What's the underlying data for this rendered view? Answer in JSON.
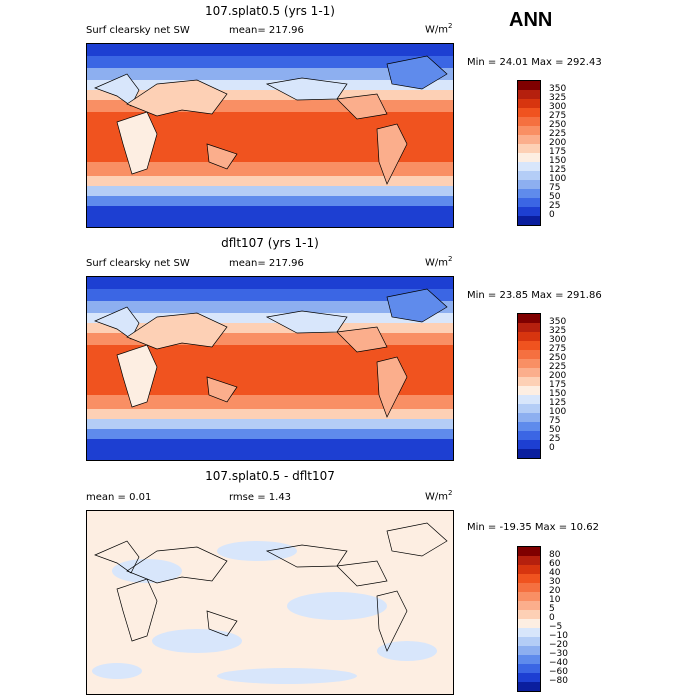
{
  "season": "ANN",
  "panels": [
    {
      "title": "107.splat0.5 (yrs 1-1)",
      "variable": "Surf clearsky net SW",
      "mean_label": "mean= 217.96",
      "units_base": "W/m",
      "units_exp": "2",
      "minmax": "Min =  24.01 Max = 292.43",
      "colorbar_levels": [
        "350",
        "325",
        "300",
        "275",
        "250",
        "225",
        "200",
        "175",
        "150",
        "125",
        "100",
        "75",
        "50",
        "25",
        "0"
      ],
      "colors": [
        "#7f0000",
        "#b5200e",
        "#d7350f",
        "#f0531f",
        "#f57040",
        "#f98f64",
        "#fbae8c",
        "#fdd0b5",
        "#fdeee2",
        "#d8e6fb",
        "#b4cdf6",
        "#8daff0",
        "#5f8bec",
        "#3b66e4",
        "#1d3fd2",
        "#0a1e9e"
      ]
    },
    {
      "title": "dflt107 (yrs 1-1)",
      "variable": "Surf clearsky net SW",
      "mean_label": "mean= 217.96",
      "units_base": "W/m",
      "units_exp": "2",
      "minmax": "Min =  23.85 Max = 291.86",
      "colorbar_levels": [
        "350",
        "325",
        "300",
        "275",
        "250",
        "225",
        "200",
        "175",
        "150",
        "125",
        "100",
        "75",
        "50",
        "25",
        "0"
      ],
      "colors": [
        "#7f0000",
        "#b5200e",
        "#d7350f",
        "#f0531f",
        "#f57040",
        "#f98f64",
        "#fbae8c",
        "#fdd0b5",
        "#fdeee2",
        "#d8e6fb",
        "#b4cdf6",
        "#8daff0",
        "#5f8bec",
        "#3b66e4",
        "#1d3fd2",
        "#0a1e9e"
      ]
    },
    {
      "title": "107.splat0.5 - dflt107",
      "mean_label": "mean =    0.01",
      "rmse_label": "rmse =    1.43",
      "units_base": "W/m",
      "units_exp": "2",
      "minmax": "Min = -19.35 Max =  10.62",
      "colorbar_levels": [
        "80",
        "60",
        "40",
        "30",
        "20",
        "10",
        "5",
        "0",
        "−5",
        "−10",
        "−20",
        "−30",
        "−40",
        "−60",
        "−80"
      ],
      "colors": [
        "#7f0000",
        "#b5200e",
        "#d7350f",
        "#f0531f",
        "#f57040",
        "#f98f64",
        "#fbae8c",
        "#fdd0b5",
        "#fdeee2",
        "#d8e6fb",
        "#b4cdf6",
        "#8daff0",
        "#5f8bec",
        "#3b66e4",
        "#1d3fd2",
        "#0a1e9e"
      ]
    }
  ]
}
